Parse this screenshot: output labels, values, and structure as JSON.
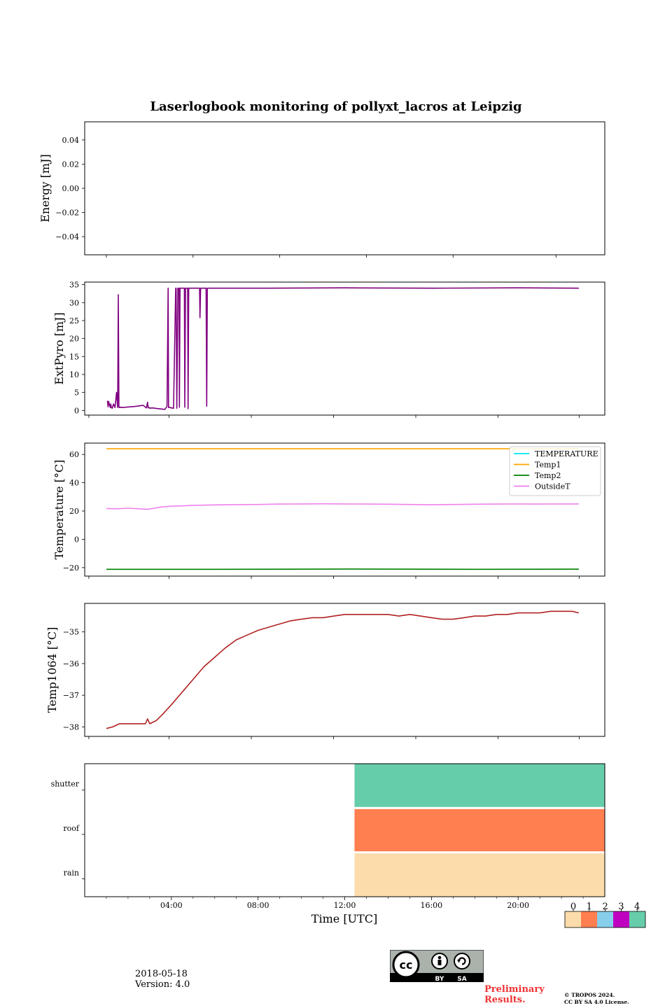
{
  "figure": {
    "title": "Laserlogbook monitoring of pollyxt_lacros at Leipzig",
    "xlabel": "Time [UTC]",
    "x_ticks": [
      "04:00",
      "08:00",
      "12:00",
      "16:00",
      "20:00"
    ]
  },
  "chart_data": [
    {
      "type": "line",
      "ylabel": "Energy [mJ]",
      "ylim": [
        -0.055,
        0.055
      ],
      "yticks": [
        -0.04,
        -0.02,
        0.0,
        0.02,
        0.04
      ],
      "ytick_labels": [
        "−0.04",
        "−0.02",
        "0.00",
        "0.02",
        "0.04"
      ],
      "series": []
    },
    {
      "type": "line",
      "ylabel": "ExtPyro [mJ]",
      "ylim": [
        -1.3,
        35.7
      ],
      "yticks": [
        0,
        5,
        10,
        15,
        20,
        25,
        30,
        35
      ],
      "ytick_labels": [
        "0",
        "5",
        "10",
        "15",
        "20",
        "25",
        "30",
        "35"
      ],
      "series": [
        {
          "color": "#800080",
          "x": [
            1.05,
            1.08,
            1.1,
            1.18,
            1.2,
            1.23,
            1.27,
            1.33,
            1.4,
            1.47,
            1.52,
            1.55,
            1.58,
            1.6,
            1.62,
            1.65,
            1.68,
            1.75,
            1.9,
            2.3,
            2.7,
            2.85,
            2.9,
            2.93,
            2.95,
            3.0,
            3.1,
            3.4,
            3.7,
            3.8,
            3.85,
            3.87,
            3.9,
            3.93,
            4.0,
            4.1,
            4.2,
            4.22,
            4.25,
            4.3,
            4.35,
            4.37,
            4.4,
            4.43,
            4.5,
            4.6,
            4.62,
            4.65,
            4.7,
            4.75,
            4.77,
            4.8,
            4.83,
            4.9,
            5.0,
            5.3,
            5.32,
            5.35,
            5.4,
            5.6,
            5.63,
            5.66,
            5.7,
            6.0,
            6.3,
            6.33,
            6.36,
            6.4,
            8.0,
            12.0,
            16.0,
            20.0,
            22.8
          ],
          "y": [
            2.7,
            1.0,
            2.5,
            0.8,
            1.8,
            0.8,
            0.6,
            1.8,
            0.8,
            5.0,
            0.8,
            32.2,
            1.0,
            0.8,
            0.9,
            0.8,
            0.9,
            0.8,
            0.9,
            1.1,
            1.4,
            0.7,
            2.3,
            0.7,
            0.9,
            0.6,
            0.7,
            0.5,
            0.3,
            1.1,
            34.0,
            0.8,
            0.9,
            0.8,
            0.7,
            0.6,
            34.0,
            34.0,
            0.6,
            34.0,
            34.0,
            0.9,
            34.0,
            34.0,
            34.0,
            34.0,
            0.9,
            34.0,
            34.0,
            34.0,
            0.5,
            34.0,
            34.0,
            34.0,
            34.0,
            34.0,
            25.8,
            34.0,
            34.0,
            34.0,
            1.2,
            34.0,
            34.0,
            34.0,
            34.0,
            34.0,
            34.0,
            34.0,
            34.0,
            34.1,
            34.0,
            34.1,
            34.0
          ]
        }
      ]
    },
    {
      "type": "line",
      "ylabel": "Temperature [°C]",
      "ylim": [
        -26,
        68
      ],
      "yticks": [
        -20,
        0,
        20,
        40,
        60
      ],
      "ytick_labels": [
        "−20",
        "0",
        "20",
        "40",
        "60"
      ],
      "legend": "top-right",
      "series": [
        {
          "name": "TEMPERATURE",
          "color": "#00e5ee",
          "x": [],
          "y": []
        },
        {
          "name": "Temp1",
          "color": "#ffa500",
          "x": [
            1.0,
            6.0,
            12.0,
            18.0,
            22.8
          ],
          "y": [
            64.0,
            64.0,
            64.0,
            64.0,
            64.0
          ]
        },
        {
          "name": "Temp2",
          "color": "#008000",
          "x": [
            1.0,
            6.0,
            12.0,
            18.0,
            22.8
          ],
          "y": [
            -21.2,
            -21.2,
            -21.0,
            -21.2,
            -21.1
          ]
        },
        {
          "name": "OutsideT",
          "color": "#ee82ee",
          "x": [
            1.0,
            1.5,
            2.0,
            2.5,
            2.9,
            3.2,
            3.5,
            4.0,
            4.5,
            5.0,
            6.0,
            7.0,
            8.0,
            9.0,
            10.0,
            11.0,
            12.0,
            13.0,
            14.0,
            15.0,
            16.0,
            17.0,
            18.0,
            19.0,
            20.0,
            21.0,
            22.0,
            22.8
          ],
          "y": [
            21.8,
            21.6,
            22.0,
            21.6,
            21.2,
            22.0,
            22.8,
            23.4,
            23.6,
            24.0,
            24.3,
            24.5,
            24.6,
            24.9,
            25.0,
            25.1,
            25.0,
            24.9,
            24.8,
            24.6,
            24.4,
            24.6,
            24.8,
            24.9,
            25.0,
            24.9,
            25.0,
            25.0
          ]
        }
      ]
    },
    {
      "type": "line",
      "ylabel": "Temp1064 [°C]",
      "ylim": [
        -38.3,
        -34.1
      ],
      "yticks": [
        -38,
        -37,
        -36,
        -35
      ],
      "ytick_labels": [
        "−38",
        "−37",
        "−36",
        "−35"
      ],
      "series": [
        {
          "color": "#b22222",
          "x": [
            1.0,
            1.3,
            1.6,
            2.0,
            2.5,
            2.8,
            2.9,
            3.0,
            3.3,
            3.6,
            4.0,
            4.5,
            5.0,
            5.5,
            6.0,
            6.5,
            7.0,
            7.5,
            8.0,
            8.5,
            9.0,
            9.5,
            10.0,
            10.5,
            11.0,
            11.5,
            12.0,
            12.5,
            13.0,
            13.5,
            14.0,
            14.5,
            15.0,
            15.5,
            16.0,
            16.5,
            17.0,
            17.5,
            18.0,
            18.5,
            19.0,
            19.5,
            20.0,
            20.5,
            21.0,
            21.5,
            22.0,
            22.5,
            22.8
          ],
          "y": [
            -38.05,
            -38.0,
            -37.9,
            -37.9,
            -37.9,
            -37.9,
            -37.75,
            -37.9,
            -37.8,
            -37.6,
            -37.3,
            -36.9,
            -36.5,
            -36.1,
            -35.8,
            -35.5,
            -35.25,
            -35.1,
            -34.95,
            -34.85,
            -34.75,
            -34.65,
            -34.6,
            -34.55,
            -34.55,
            -34.5,
            -34.45,
            -34.45,
            -34.45,
            -34.45,
            -34.45,
            -34.5,
            -34.45,
            -34.5,
            -34.55,
            -34.6,
            -34.6,
            -34.55,
            -34.5,
            -34.5,
            -34.45,
            -34.45,
            -34.4,
            -34.4,
            -34.4,
            -34.35,
            -34.35,
            -34.35,
            -34.4
          ]
        }
      ]
    },
    {
      "type": "heatmap",
      "yticks": [
        "rain",
        "roof",
        "shutter"
      ],
      "xlim": [
        0,
        24
      ],
      "colorbar_ticks": [
        "0",
        "1",
        "2",
        "3",
        "4"
      ],
      "colorbar_colors": [
        "#fcdcab",
        "#ff7f50",
        "#87ceeb",
        "#c000c0",
        "#66cdaa"
      ],
      "rows": [
        {
          "label": "shutter",
          "start": 12.45,
          "end": 24,
          "color": "#66cdaa"
        },
        {
          "label": "roof",
          "start": 12.45,
          "end": 24,
          "color": "#ff7f50"
        },
        {
          "label": "rain",
          "start": 12.45,
          "end": 24,
          "color": "#fcdcab"
        }
      ]
    }
  ],
  "footer": {
    "date": "2018-05-18",
    "version": "Version: 4.0",
    "preliminary_line1": "Preliminary",
    "preliminary_line2": "Results.",
    "copyright_line1": "© TROPOS 2024.",
    "copyright_line2": "CC BY SA 4.0 License.",
    "license_badge": {
      "cc": "cc",
      "by": "BY",
      "sa": "SA"
    }
  }
}
